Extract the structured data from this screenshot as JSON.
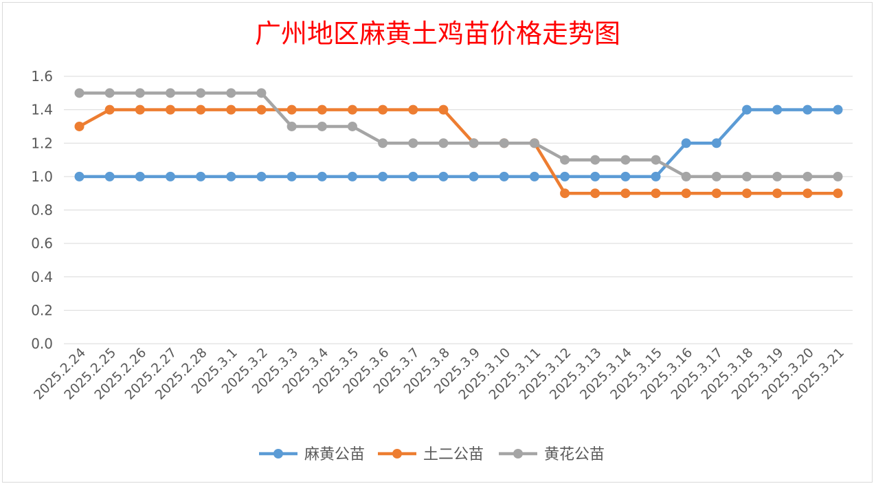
{
  "chart_data": {
    "type": "line",
    "title": "广州地区麻黄土鸡苗价格走势图",
    "xlabel": "",
    "ylabel": "",
    "categories": [
      "2025.2.24",
      "2025.2.25",
      "2025.2.26",
      "2025.2.27",
      "2025.2.28",
      "2025.3.1",
      "2025.3.2",
      "2025.3.3",
      "2025.3.4",
      "2025.3.5",
      "2025.3.6",
      "2025.3.7",
      "2025.3.8",
      "2025.3.9",
      "2025.3.10",
      "2025.3.11",
      "2025.3.12",
      "2025.3.13",
      "2025.3.14",
      "2025.3.15",
      "2025.3.16",
      "2025.3.17",
      "2025.3.18",
      "2025.3.19",
      "2025.3.20",
      "2025.3.21"
    ],
    "ylim": [
      0,
      1.6
    ],
    "yticks": [
      "0.0",
      "0.2",
      "0.4",
      "0.6",
      "0.8",
      "1.0",
      "1.2",
      "1.4",
      "1.6"
    ],
    "grid": true,
    "legend": "bottom",
    "series": [
      {
        "name": "麻黄公苗",
        "color": "#5b9bd5",
        "values": [
          1.0,
          1.0,
          1.0,
          1.0,
          1.0,
          1.0,
          1.0,
          1.0,
          1.0,
          1.0,
          1.0,
          1.0,
          1.0,
          1.0,
          1.0,
          1.0,
          1.0,
          1.0,
          1.0,
          1.0,
          1.2,
          1.2,
          1.4,
          1.4,
          1.4,
          1.4
        ]
      },
      {
        "name": "土二公苗",
        "color": "#ed7d31",
        "values": [
          1.3,
          1.4,
          1.4,
          1.4,
          1.4,
          1.4,
          1.4,
          1.4,
          1.4,
          1.4,
          1.4,
          1.4,
          1.4,
          1.2,
          1.2,
          1.2,
          0.9,
          0.9,
          0.9,
          0.9,
          0.9,
          0.9,
          0.9,
          0.9,
          0.9,
          0.9
        ]
      },
      {
        "name": "黄花公苗",
        "color": "#a5a5a5",
        "values": [
          1.5,
          1.5,
          1.5,
          1.5,
          1.5,
          1.5,
          1.5,
          1.3,
          1.3,
          1.3,
          1.2,
          1.2,
          1.2,
          1.2,
          1.2,
          1.2,
          1.1,
          1.1,
          1.1,
          1.1,
          1.0,
          1.0,
          1.0,
          1.0,
          1.0,
          1.0
        ]
      }
    ],
    "colors": {
      "title": "#ff0000",
      "grid": "#d9d9d9",
      "tick_text": "#595959"
    }
  }
}
